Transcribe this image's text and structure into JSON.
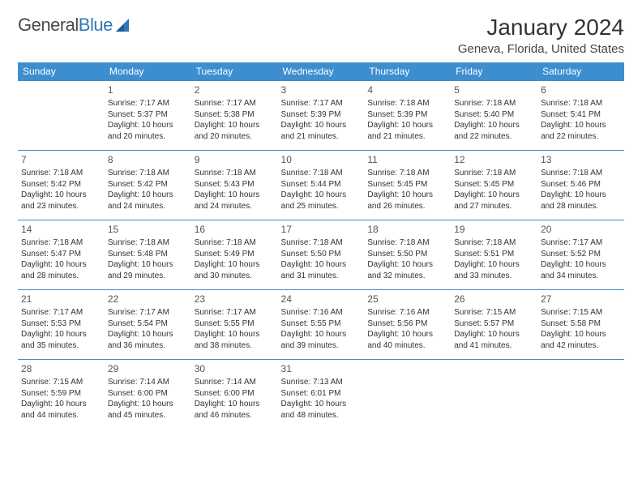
{
  "brand": {
    "part1": "General",
    "part2": "Blue"
  },
  "title": "January 2024",
  "location": "Geneva, Florida, United States",
  "colors": {
    "header_bg": "#3d8ecf",
    "header_fg": "#ffffff",
    "border": "#3d8ecf",
    "brand_gray": "#4a4a4a",
    "brand_blue": "#2f77b8"
  },
  "weekdays": [
    "Sunday",
    "Monday",
    "Tuesday",
    "Wednesday",
    "Thursday",
    "Friday",
    "Saturday"
  ],
  "weeks": [
    [
      null,
      {
        "n": "1",
        "rise": "Sunrise: 7:17 AM",
        "set": "Sunset: 5:37 PM",
        "day": "Daylight: 10 hours and 20 minutes."
      },
      {
        "n": "2",
        "rise": "Sunrise: 7:17 AM",
        "set": "Sunset: 5:38 PM",
        "day": "Daylight: 10 hours and 20 minutes."
      },
      {
        "n": "3",
        "rise": "Sunrise: 7:17 AM",
        "set": "Sunset: 5:39 PM",
        "day": "Daylight: 10 hours and 21 minutes."
      },
      {
        "n": "4",
        "rise": "Sunrise: 7:18 AM",
        "set": "Sunset: 5:39 PM",
        "day": "Daylight: 10 hours and 21 minutes."
      },
      {
        "n": "5",
        "rise": "Sunrise: 7:18 AM",
        "set": "Sunset: 5:40 PM",
        "day": "Daylight: 10 hours and 22 minutes."
      },
      {
        "n": "6",
        "rise": "Sunrise: 7:18 AM",
        "set": "Sunset: 5:41 PM",
        "day": "Daylight: 10 hours and 22 minutes."
      }
    ],
    [
      {
        "n": "7",
        "rise": "Sunrise: 7:18 AM",
        "set": "Sunset: 5:42 PM",
        "day": "Daylight: 10 hours and 23 minutes."
      },
      {
        "n": "8",
        "rise": "Sunrise: 7:18 AM",
        "set": "Sunset: 5:42 PM",
        "day": "Daylight: 10 hours and 24 minutes."
      },
      {
        "n": "9",
        "rise": "Sunrise: 7:18 AM",
        "set": "Sunset: 5:43 PM",
        "day": "Daylight: 10 hours and 24 minutes."
      },
      {
        "n": "10",
        "rise": "Sunrise: 7:18 AM",
        "set": "Sunset: 5:44 PM",
        "day": "Daylight: 10 hours and 25 minutes."
      },
      {
        "n": "11",
        "rise": "Sunrise: 7:18 AM",
        "set": "Sunset: 5:45 PM",
        "day": "Daylight: 10 hours and 26 minutes."
      },
      {
        "n": "12",
        "rise": "Sunrise: 7:18 AM",
        "set": "Sunset: 5:45 PM",
        "day": "Daylight: 10 hours and 27 minutes."
      },
      {
        "n": "13",
        "rise": "Sunrise: 7:18 AM",
        "set": "Sunset: 5:46 PM",
        "day": "Daylight: 10 hours and 28 minutes."
      }
    ],
    [
      {
        "n": "14",
        "rise": "Sunrise: 7:18 AM",
        "set": "Sunset: 5:47 PM",
        "day": "Daylight: 10 hours and 28 minutes."
      },
      {
        "n": "15",
        "rise": "Sunrise: 7:18 AM",
        "set": "Sunset: 5:48 PM",
        "day": "Daylight: 10 hours and 29 minutes."
      },
      {
        "n": "16",
        "rise": "Sunrise: 7:18 AM",
        "set": "Sunset: 5:49 PM",
        "day": "Daylight: 10 hours and 30 minutes."
      },
      {
        "n": "17",
        "rise": "Sunrise: 7:18 AM",
        "set": "Sunset: 5:50 PM",
        "day": "Daylight: 10 hours and 31 minutes."
      },
      {
        "n": "18",
        "rise": "Sunrise: 7:18 AM",
        "set": "Sunset: 5:50 PM",
        "day": "Daylight: 10 hours and 32 minutes."
      },
      {
        "n": "19",
        "rise": "Sunrise: 7:18 AM",
        "set": "Sunset: 5:51 PM",
        "day": "Daylight: 10 hours and 33 minutes."
      },
      {
        "n": "20",
        "rise": "Sunrise: 7:17 AM",
        "set": "Sunset: 5:52 PM",
        "day": "Daylight: 10 hours and 34 minutes."
      }
    ],
    [
      {
        "n": "21",
        "rise": "Sunrise: 7:17 AM",
        "set": "Sunset: 5:53 PM",
        "day": "Daylight: 10 hours and 35 minutes."
      },
      {
        "n": "22",
        "rise": "Sunrise: 7:17 AM",
        "set": "Sunset: 5:54 PM",
        "day": "Daylight: 10 hours and 36 minutes."
      },
      {
        "n": "23",
        "rise": "Sunrise: 7:17 AM",
        "set": "Sunset: 5:55 PM",
        "day": "Daylight: 10 hours and 38 minutes."
      },
      {
        "n": "24",
        "rise": "Sunrise: 7:16 AM",
        "set": "Sunset: 5:55 PM",
        "day": "Daylight: 10 hours and 39 minutes."
      },
      {
        "n": "25",
        "rise": "Sunrise: 7:16 AM",
        "set": "Sunset: 5:56 PM",
        "day": "Daylight: 10 hours and 40 minutes."
      },
      {
        "n": "26",
        "rise": "Sunrise: 7:15 AM",
        "set": "Sunset: 5:57 PM",
        "day": "Daylight: 10 hours and 41 minutes."
      },
      {
        "n": "27",
        "rise": "Sunrise: 7:15 AM",
        "set": "Sunset: 5:58 PM",
        "day": "Daylight: 10 hours and 42 minutes."
      }
    ],
    [
      {
        "n": "28",
        "rise": "Sunrise: 7:15 AM",
        "set": "Sunset: 5:59 PM",
        "day": "Daylight: 10 hours and 44 minutes."
      },
      {
        "n": "29",
        "rise": "Sunrise: 7:14 AM",
        "set": "Sunset: 6:00 PM",
        "day": "Daylight: 10 hours and 45 minutes."
      },
      {
        "n": "30",
        "rise": "Sunrise: 7:14 AM",
        "set": "Sunset: 6:00 PM",
        "day": "Daylight: 10 hours and 46 minutes."
      },
      {
        "n": "31",
        "rise": "Sunrise: 7:13 AM",
        "set": "Sunset: 6:01 PM",
        "day": "Daylight: 10 hours and 48 minutes."
      },
      null,
      null,
      null
    ]
  ]
}
